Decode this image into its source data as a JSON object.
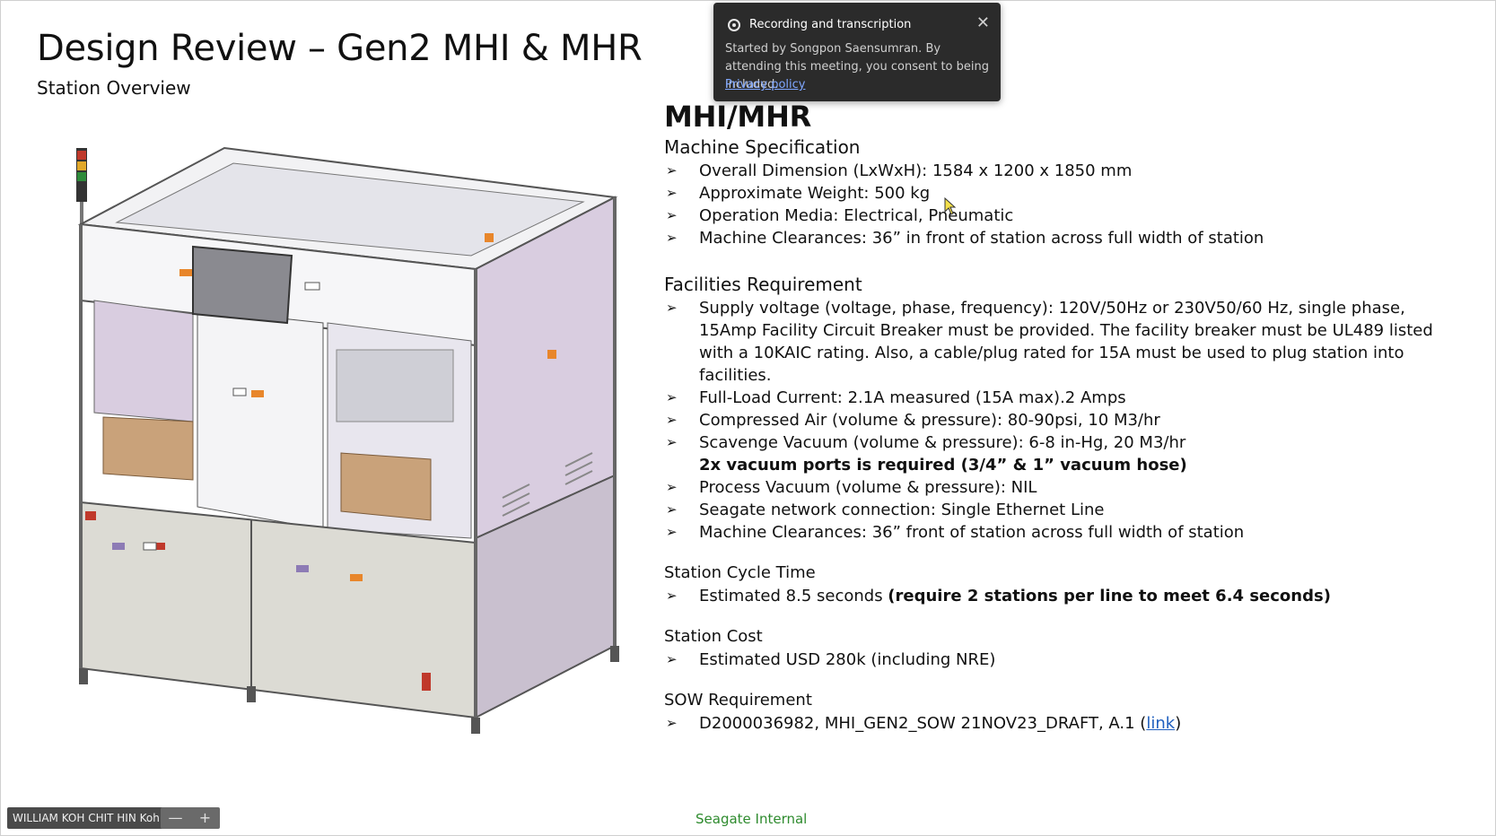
{
  "slide": {
    "title": "Design Review – Gen2 MHI & MHR",
    "subtitle": "Station Overview",
    "heading": "MHI/MHR",
    "machine_spec": {
      "heading": "Machine Specification",
      "items": [
        "Overall Dimension (LxWxH): 1584 x 1200 x 1850 mm",
        "Approximate Weight: 500 kg",
        "Operation Media: Electrical, Pneumatic",
        "Machine Clearances: 36” in front of station across full width of station"
      ]
    },
    "facilities": {
      "heading": "Facilities Requirement",
      "items": [
        "Supply voltage (voltage, phase, frequency): 120V/50Hz or 230V50/60 Hz, single phase, 15Amp Facility Circuit Breaker must be provided. The facility breaker must be UL489 listed with a 10KAIC rating. Also, a cable/plug rated for 15A must be used to plug station into facilities.",
        "Full-Load Current: 2.1A measured (15A max).2 Amps",
        "Compressed Air (volume & pressure): 80-90psi, 10 M3/hr",
        "Scavenge Vacuum (volume & pressure): 6-8 in-Hg, 20 M3/hr"
      ],
      "note": "2x vacuum ports is required (3/4” & 1” vacuum hose)",
      "items2": [
        "Process Vacuum (volume & pressure): NIL",
        "Seagate network connection: Single Ethernet Line",
        "Machine Clearances: 36” front of station across full width of station"
      ]
    },
    "cycle_time": {
      "heading": "Station Cycle Time",
      "item_plain": "Estimated 8.5 seconds ",
      "item_bold": "(require 2 stations per line to meet 6.4 seconds)"
    },
    "cost": {
      "heading": "Station Cost",
      "item": "Estimated USD 280k (including NRE)"
    },
    "sow": {
      "heading": "SOW Requirement",
      "item_prefix": "D2000036982, MHI_GEN2_SOW 21NOV23_DRAFT, A.1 (",
      "link_text": "link",
      "item_suffix": ")"
    },
    "footer": "Seagate Internal"
  },
  "toast": {
    "title": "Recording and transcription",
    "message": "Started by Songpon Saensumran. By attending this meeting, you consent to being included.",
    "privacy_link": "Privacy policy"
  },
  "participant": {
    "name": "WILLIAM KOH CHIT HIN Koh"
  },
  "zoom": {
    "minus": "—",
    "plus": "+"
  },
  "colors": {
    "panel_lavender": "#d9cde0",
    "frame_gray": "#8a8a94",
    "footer_green": "#2e8b2e",
    "link_blue": "#1f5fbf"
  }
}
